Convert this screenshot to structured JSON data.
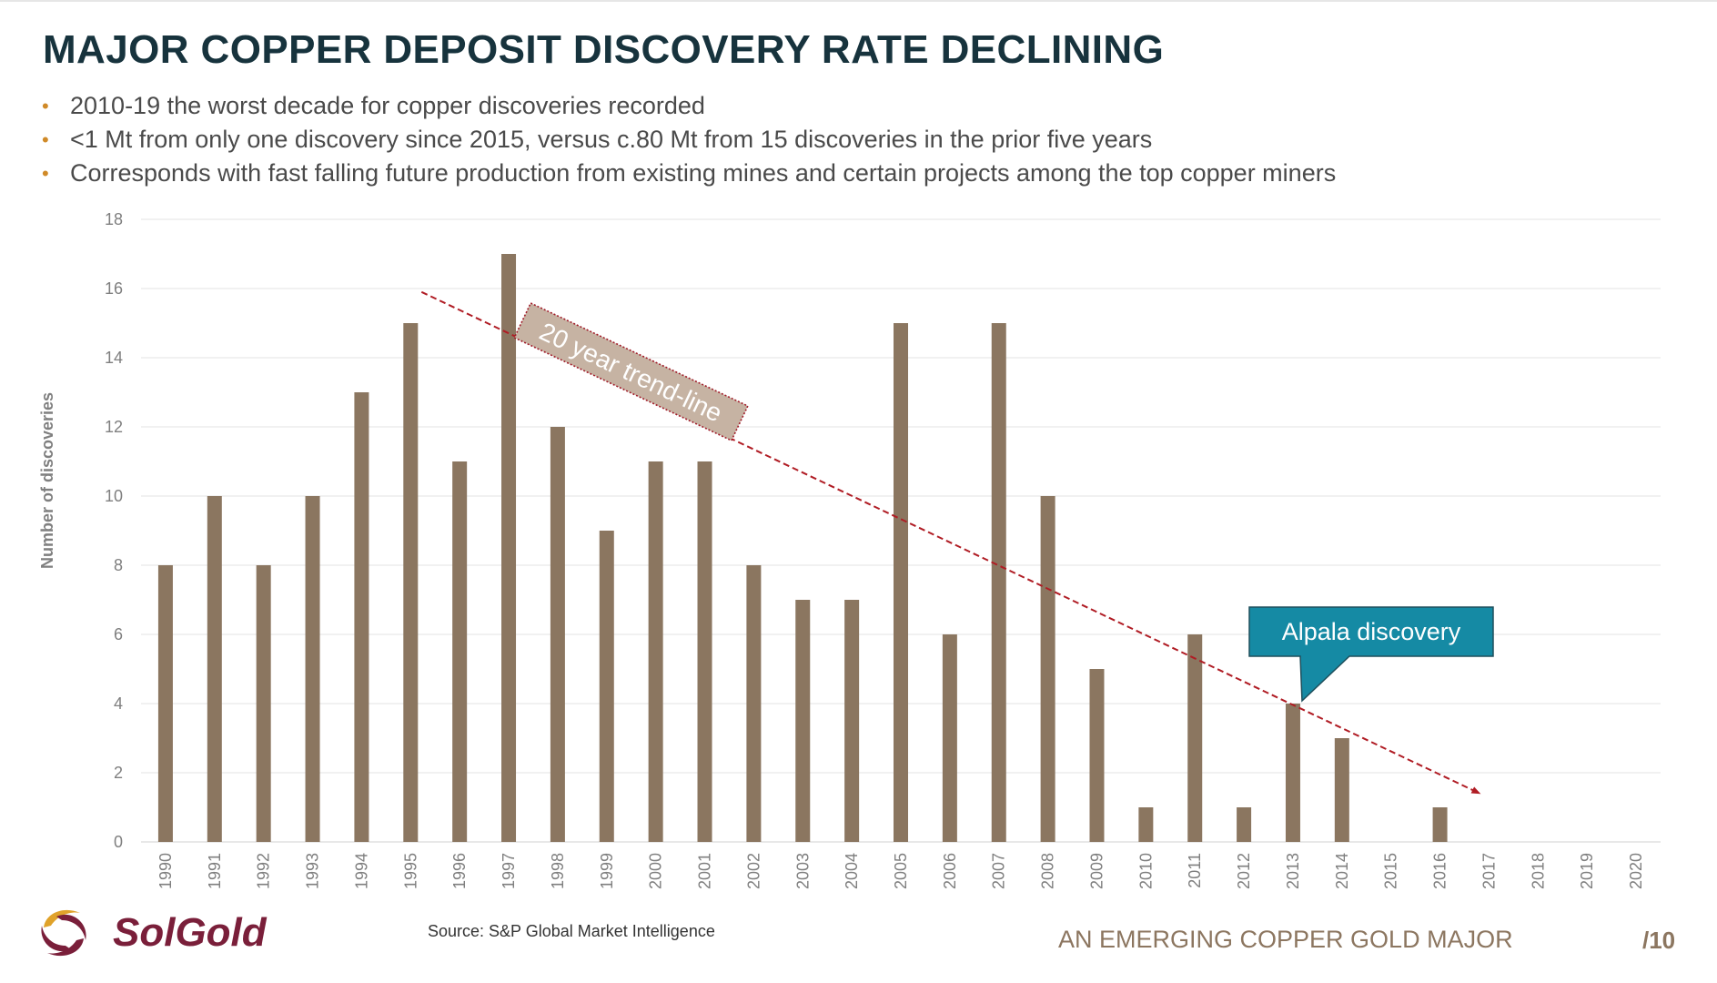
{
  "title": "MAJOR COPPER DEPOSIT DISCOVERY RATE DECLINING",
  "bullets": [
    "2010-19 the worst decade for copper discoveries recorded",
    "<1 Mt from only one discovery since 2015, versus c.80 Mt from 15 discoveries in the prior five years",
    "Corresponds with fast falling future production from existing mines and certain projects among the top copper miners"
  ],
  "colors": {
    "bar": "#8b7660",
    "trend": "#b01c24",
    "callout": "#158aa4",
    "title": "#17333d",
    "bullet": "#d08a28",
    "brand": "#7a1f3a"
  },
  "chart_data": {
    "type": "bar",
    "categories": [
      "1990",
      "1991",
      "1992",
      "1993",
      "1994",
      "1995",
      "1996",
      "1997",
      "1998",
      "1999",
      "2000",
      "2001",
      "2002",
      "2003",
      "2004",
      "2005",
      "2006",
      "2007",
      "2008",
      "2009",
      "2010",
      "2011",
      "2012",
      "2013",
      "2014",
      "2015",
      "2016",
      "2017",
      "2018",
      "2019",
      "2020"
    ],
    "values": [
      8,
      10,
      8,
      10,
      13,
      15,
      11,
      17,
      12,
      9,
      11,
      11,
      8,
      7,
      7,
      15,
      6,
      15,
      10,
      5,
      1,
      6,
      1,
      4,
      3,
      0,
      1,
      0,
      0,
      0,
      0
    ],
    "ylabel": "Number of discoveries",
    "ylim": [
      0,
      18
    ],
    "yticks": [
      0,
      2,
      4,
      6,
      8,
      10,
      12,
      14,
      16,
      18
    ],
    "grid": true,
    "legend": "none",
    "annotations": {
      "trendline": {
        "label": "20 year trend-line",
        "start": {
          "x": 1995,
          "y": 15.9
        },
        "end": {
          "x": 2017,
          "y": 1.4
        }
      },
      "callout": {
        "label": "Alpala discovery",
        "points_to": {
          "x": 2013,
          "y": 4
        }
      }
    }
  },
  "footer": {
    "brand": "SolGold",
    "source": "Source: S&P Global Market Intelligence",
    "tagline": "AN EMERGING COPPER GOLD MAJOR",
    "page": "/10"
  }
}
